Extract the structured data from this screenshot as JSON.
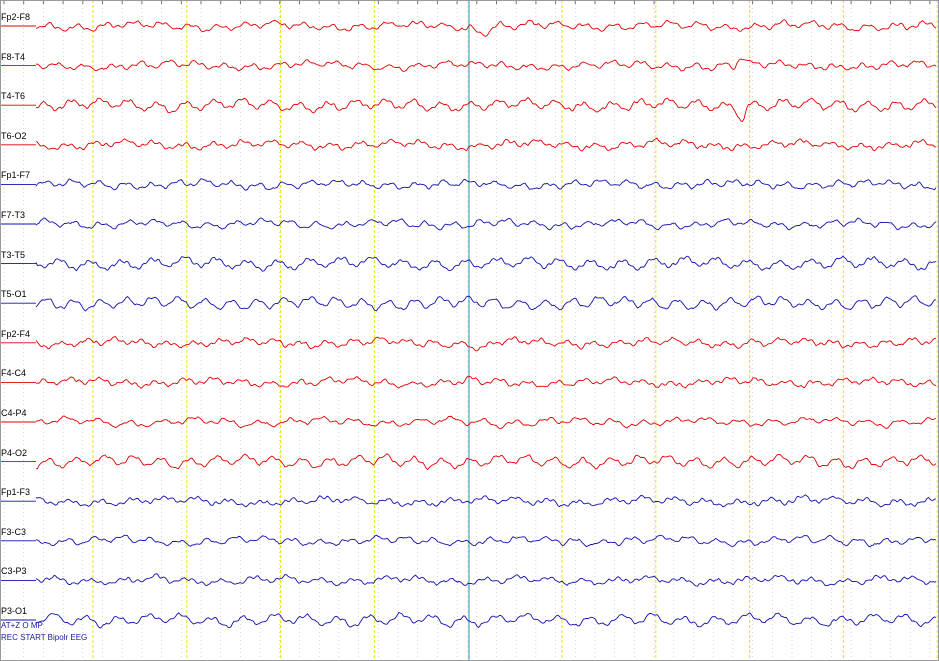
{
  "montage_note": "REC START Bipolr EEG",
  "event_marker": "AT+Z O MP",
  "colors": {
    "right_hemisphere": "#e00000",
    "left_hemisphere": "#1010b0",
    "second_grid": "#e6e600",
    "sub_grid": "#b8b8b8",
    "cursor": "#6fb4ff",
    "background": "#ffffff"
  },
  "channels": [
    {
      "label": "Fp2-F8",
      "side": "right"
    },
    {
      "label": "F8-T4",
      "side": "right"
    },
    {
      "label": "T4-T6",
      "side": "right"
    },
    {
      "label": "T6-O2",
      "side": "right"
    },
    {
      "label": "Fp1-F7",
      "side": "left"
    },
    {
      "label": "F7-T3",
      "side": "left"
    },
    {
      "label": "T3-T5",
      "side": "left"
    },
    {
      "label": "T5-O1",
      "side": "left"
    },
    {
      "label": "Fp2-F4",
      "side": "right"
    },
    {
      "label": "F4-C4",
      "side": "right"
    },
    {
      "label": "C4-P4",
      "side": "right"
    },
    {
      "label": "P4-O2",
      "side": "right"
    },
    {
      "label": "Fp1-F3",
      "side": "left"
    },
    {
      "label": "F3-C3",
      "side": "left"
    },
    {
      "label": "C3-P3",
      "side": "left"
    },
    {
      "label": "P3-O1",
      "side": "left"
    }
  ]
}
